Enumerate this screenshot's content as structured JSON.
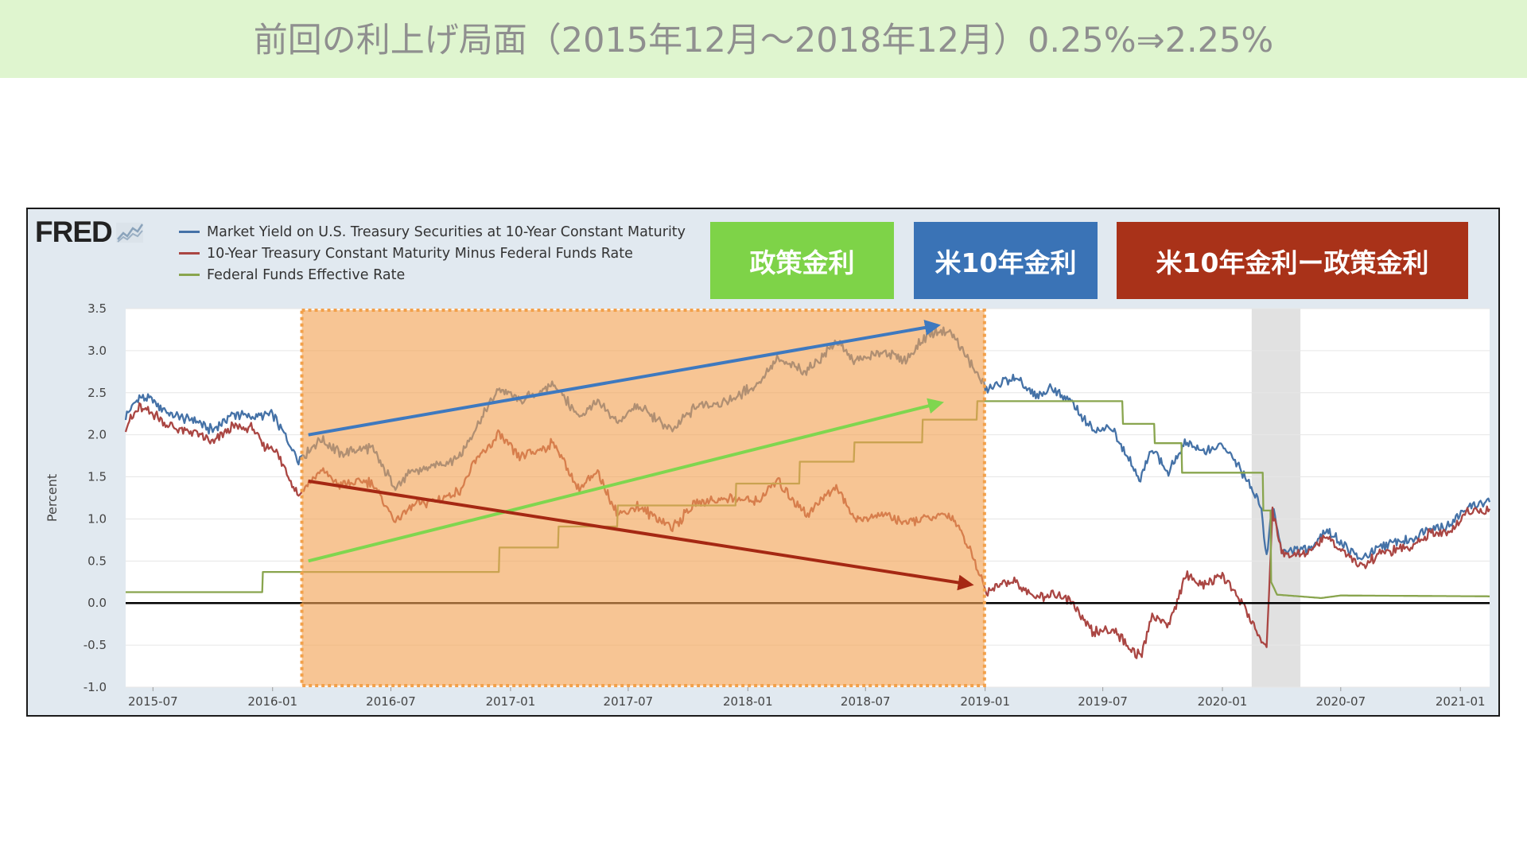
{
  "slide": {
    "title": "前回の利上げ局面（2015年12月〜2018年12月）0.25%⇒2.25%",
    "header_color": "#dff5cf"
  },
  "logo": {
    "text": "FRED",
    "icon": "line-chart-icon"
  },
  "tags": {
    "policy_rate": {
      "label": "政策金利",
      "color": "#7ed348"
    },
    "ten_year": {
      "label": "米10年金利",
      "color": "#3a73b6"
    },
    "spread": {
      "label": "米10年金利ー政策金利",
      "color": "#a93219"
    }
  },
  "chart_data": {
    "type": "line",
    "ylabel": "Percent",
    "ylim": [
      -1.0,
      3.5
    ],
    "yticks": [
      "3.5",
      "3.0",
      "2.5",
      "2.0",
      "1.5",
      "1.0",
      "0.5",
      "0.0",
      "-0.5",
      "-1.0"
    ],
    "xlim": [
      "2015-05-20",
      "2021-02-15"
    ],
    "xticks": [
      "2015-07",
      "2016-01",
      "2016-07",
      "2017-01",
      "2017-07",
      "2018-01",
      "2018-07",
      "2019-01",
      "2019-07",
      "2020-01",
      "2020-07",
      "2021-01"
    ],
    "grid": true,
    "legend_position": "top-left",
    "series": [
      {
        "name": "Market Yield on U.S. Treasury Securities at 10-Year Constant Maturity",
        "color": "#4572a7",
        "points": [
          [
            "2015-05-20",
            2.22
          ],
          [
            "2015-06-10",
            2.45
          ],
          [
            "2015-07-01",
            2.4
          ],
          [
            "2015-08-01",
            2.22
          ],
          [
            "2015-09-01",
            2.18
          ],
          [
            "2015-10-01",
            2.05
          ],
          [
            "2015-11-01",
            2.25
          ],
          [
            "2015-12-01",
            2.22
          ],
          [
            "2016-01-01",
            2.24
          ],
          [
            "2016-02-10",
            1.7
          ],
          [
            "2016-03-15",
            1.95
          ],
          [
            "2016-04-15",
            1.78
          ],
          [
            "2016-06-01",
            1.85
          ],
          [
            "2016-07-08",
            1.37
          ],
          [
            "2016-08-01",
            1.55
          ],
          [
            "2016-09-15",
            1.65
          ],
          [
            "2016-10-15",
            1.75
          ],
          [
            "2016-11-10",
            2.1
          ],
          [
            "2016-12-15",
            2.55
          ],
          [
            "2017-01-15",
            2.4
          ],
          [
            "2017-03-10",
            2.6
          ],
          [
            "2017-04-15",
            2.22
          ],
          [
            "2017-05-15",
            2.38
          ],
          [
            "2017-06-15",
            2.15
          ],
          [
            "2017-07-15",
            2.35
          ],
          [
            "2017-09-07",
            2.05
          ],
          [
            "2017-10-15",
            2.35
          ],
          [
            "2017-12-01",
            2.4
          ],
          [
            "2018-01-15",
            2.6
          ],
          [
            "2018-02-15",
            2.9
          ],
          [
            "2018-04-01",
            2.75
          ],
          [
            "2018-05-17",
            3.1
          ],
          [
            "2018-06-15",
            2.88
          ],
          [
            "2018-08-01",
            2.98
          ],
          [
            "2018-09-01",
            2.88
          ],
          [
            "2018-10-05",
            3.2
          ],
          [
            "2018-11-08",
            3.24
          ],
          [
            "2018-12-01",
            2.95
          ],
          [
            "2019-01-03",
            2.55
          ],
          [
            "2019-02-15",
            2.68
          ],
          [
            "2019-03-20",
            2.45
          ],
          [
            "2019-04-15",
            2.55
          ],
          [
            "2019-05-15",
            2.38
          ],
          [
            "2019-06-15",
            2.05
          ],
          [
            "2019-07-15",
            2.08
          ],
          [
            "2019-08-28",
            1.47
          ],
          [
            "2019-09-15",
            1.85
          ],
          [
            "2019-10-10",
            1.55
          ],
          [
            "2019-11-08",
            1.94
          ],
          [
            "2019-12-01",
            1.8
          ],
          [
            "2020-01-01",
            1.88
          ],
          [
            "2020-02-01",
            1.55
          ],
          [
            "2020-03-01",
            1.13
          ],
          [
            "2020-03-09",
            0.54
          ],
          [
            "2020-03-18",
            1.18
          ],
          [
            "2020-04-01",
            0.62
          ],
          [
            "2020-05-15",
            0.65
          ],
          [
            "2020-06-08",
            0.88
          ],
          [
            "2020-07-15",
            0.62
          ],
          [
            "2020-08-04",
            0.52
          ],
          [
            "2020-09-01",
            0.68
          ],
          [
            "2020-10-15",
            0.75
          ],
          [
            "2020-11-15",
            0.9
          ],
          [
            "2020-12-15",
            0.92
          ],
          [
            "2021-01-12",
            1.15
          ],
          [
            "2021-02-15",
            1.2
          ]
        ]
      },
      {
        "name": "10-Year Treasury Constant Maturity Minus Federal Funds Rate",
        "color": "#aa4643",
        "points": [
          [
            "2015-05-20",
            2.1
          ],
          [
            "2015-06-10",
            2.33
          ],
          [
            "2015-07-01",
            2.25
          ],
          [
            "2015-08-01",
            2.08
          ],
          [
            "2015-09-01",
            2.04
          ],
          [
            "2015-10-01",
            1.9
          ],
          [
            "2015-11-01",
            2.1
          ],
          [
            "2015-12-01",
            2.08
          ],
          [
            "2015-12-20",
            1.85
          ],
          [
            "2016-01-01",
            1.88
          ],
          [
            "2016-02-10",
            1.28
          ],
          [
            "2016-03-15",
            1.58
          ],
          [
            "2016-04-15",
            1.4
          ],
          [
            "2016-06-01",
            1.45
          ],
          [
            "2016-07-08",
            0.97
          ],
          [
            "2016-08-01",
            1.15
          ],
          [
            "2016-09-15",
            1.24
          ],
          [
            "2016-10-15",
            1.33
          ],
          [
            "2016-11-10",
            1.7
          ],
          [
            "2016-12-15",
            2.0
          ],
          [
            "2017-01-15",
            1.72
          ],
          [
            "2017-03-10",
            1.9
          ],
          [
            "2017-04-15",
            1.35
          ],
          [
            "2017-05-15",
            1.55
          ],
          [
            "2017-06-15",
            1.05
          ],
          [
            "2017-07-15",
            1.15
          ],
          [
            "2017-09-07",
            0.9
          ],
          [
            "2017-10-15",
            1.2
          ],
          [
            "2017-12-01",
            1.25
          ],
          [
            "2018-01-15",
            1.2
          ],
          [
            "2018-02-15",
            1.45
          ],
          [
            "2018-04-01",
            1.05
          ],
          [
            "2018-05-17",
            1.4
          ],
          [
            "2018-06-15",
            1.0
          ],
          [
            "2018-08-01",
            1.05
          ],
          [
            "2018-09-01",
            0.95
          ],
          [
            "2018-10-05",
            1.0
          ],
          [
            "2018-11-08",
            1.05
          ],
          [
            "2018-12-01",
            0.75
          ],
          [
            "2019-01-03",
            0.15
          ],
          [
            "2019-02-15",
            0.28
          ],
          [
            "2019-03-20",
            0.05
          ],
          [
            "2019-04-15",
            0.12
          ],
          [
            "2019-05-15",
            0.0
          ],
          [
            "2019-06-15",
            -0.35
          ],
          [
            "2019-07-15",
            -0.3
          ],
          [
            "2019-08-28",
            -0.65
          ],
          [
            "2019-09-15",
            -0.15
          ],
          [
            "2019-10-10",
            -0.25
          ],
          [
            "2019-11-08",
            0.35
          ],
          [
            "2019-12-01",
            0.2
          ],
          [
            "2020-01-01",
            0.33
          ],
          [
            "2020-02-01",
            0.0
          ],
          [
            "2020-03-01",
            -0.45
          ],
          [
            "2020-03-09",
            -0.55
          ],
          [
            "2020-03-18",
            1.1
          ],
          [
            "2020-04-01",
            0.58
          ],
          [
            "2020-05-15",
            0.6
          ],
          [
            "2020-06-08",
            0.8
          ],
          [
            "2020-07-15",
            0.53
          ],
          [
            "2020-08-04",
            0.44
          ],
          [
            "2020-09-01",
            0.6
          ],
          [
            "2020-10-15",
            0.66
          ],
          [
            "2020-11-15",
            0.82
          ],
          [
            "2020-12-15",
            0.83
          ],
          [
            "2021-01-12",
            1.07
          ],
          [
            "2021-02-15",
            1.12
          ]
        ]
      },
      {
        "name": "Federal Funds Effective Rate",
        "color": "#89a54e",
        "points": [
          [
            "2015-05-20",
            0.13
          ],
          [
            "2015-12-16",
            0.13
          ],
          [
            "2015-12-17",
            0.37
          ],
          [
            "2016-12-14",
            0.37
          ],
          [
            "2016-12-15",
            0.66
          ],
          [
            "2017-03-15",
            0.66
          ],
          [
            "2017-03-16",
            0.91
          ],
          [
            "2017-06-14",
            0.91
          ],
          [
            "2017-06-15",
            1.16
          ],
          [
            "2017-12-13",
            1.16
          ],
          [
            "2017-12-14",
            1.42
          ],
          [
            "2018-03-21",
            1.42
          ],
          [
            "2018-03-22",
            1.68
          ],
          [
            "2018-06-13",
            1.68
          ],
          [
            "2018-06-14",
            1.91
          ],
          [
            "2018-09-26",
            1.91
          ],
          [
            "2018-09-27",
            2.18
          ],
          [
            "2018-12-19",
            2.18
          ],
          [
            "2018-12-20",
            2.4
          ],
          [
            "2019-07-31",
            2.4
          ],
          [
            "2019-08-01",
            2.13
          ],
          [
            "2019-09-18",
            2.13
          ],
          [
            "2019-09-19",
            1.9
          ],
          [
            "2019-10-30",
            1.9
          ],
          [
            "2019-10-31",
            1.55
          ],
          [
            "2020-03-03",
            1.55
          ],
          [
            "2020-03-04",
            1.1
          ],
          [
            "2020-03-15",
            1.1
          ],
          [
            "2020-03-16",
            0.25
          ],
          [
            "2020-03-25",
            0.1
          ],
          [
            "2020-06-01",
            0.06
          ],
          [
            "2020-07-01",
            0.09
          ],
          [
            "2021-02-15",
            0.08
          ]
        ]
      }
    ],
    "recession_shading": [
      "2020-02-15",
      "2020-04-30"
    ],
    "highlight_period": [
      "2016-02-15",
      "2018-12-31"
    ],
    "annotation_arrows": [
      {
        "color": "#3e79bf",
        "from": [
          "2016-02-25",
          2.0
        ],
        "to": [
          "2018-10-20",
          3.3
        ]
      },
      {
        "color": "#7fd64f",
        "from": [
          "2016-02-25",
          0.5
        ],
        "to": [
          "2018-10-25",
          2.38
        ]
      },
      {
        "color": "#a52813",
        "from": [
          "2016-02-25",
          1.45
        ],
        "to": [
          "2018-12-10",
          0.22
        ]
      }
    ]
  }
}
